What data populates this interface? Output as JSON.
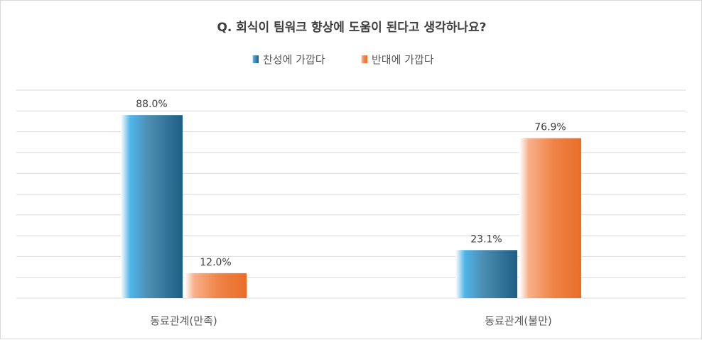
{
  "chart_data": {
    "type": "bar",
    "title": "Q. 회식이 팀워크 향상에 도움이 된다고 생각하나요?",
    "categories": [
      "동료관계(만족)",
      "동료관계(불만)"
    ],
    "series": [
      {
        "name": "찬성에 가깝다",
        "values": [
          88.0,
          23.1
        ],
        "labels": [
          "88.0%",
          "23.1%"
        ],
        "color": "#1f6f99"
      },
      {
        "name": "반대에 가깝다",
        "values": [
          12.0,
          76.9
        ],
        "labels": [
          "12.0%",
          "76.9%"
        ],
        "color": "#ee7433"
      }
    ],
    "ylim": [
      0,
      100
    ],
    "grid": true,
    "legend": "top"
  }
}
